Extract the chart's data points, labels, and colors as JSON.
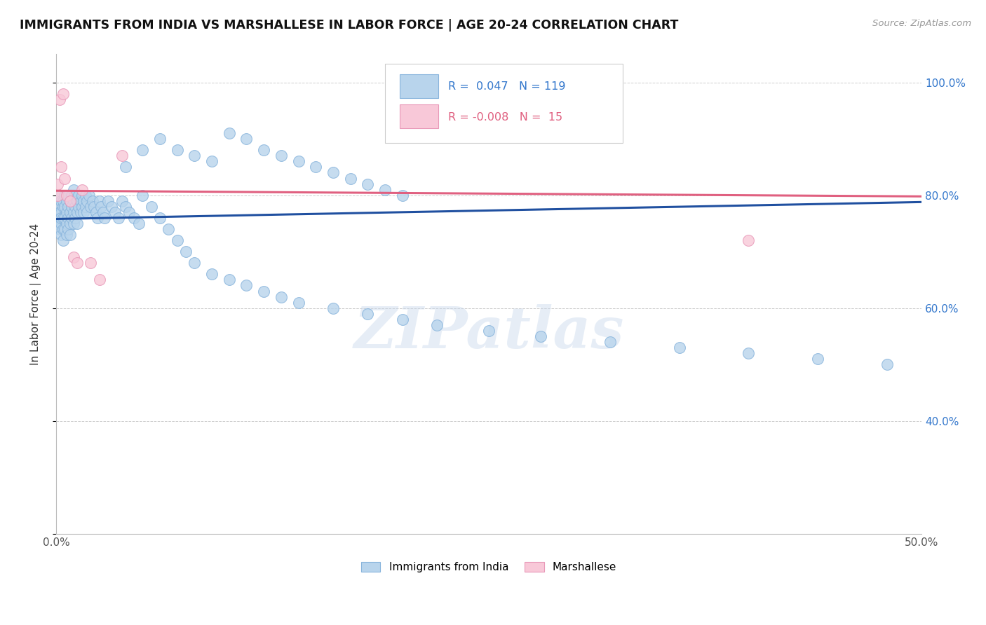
{
  "title": "IMMIGRANTS FROM INDIA VS MARSHALLESE IN LABOR FORCE | AGE 20-24 CORRELATION CHART",
  "source": "Source: ZipAtlas.com",
  "ylabel": "In Labor Force | Age 20-24",
  "xlim": [
    0.0,
    0.5
  ],
  "ylim": [
    0.2,
    1.05
  ],
  "india_R": 0.047,
  "india_N": 119,
  "marsh_R": -0.008,
  "marsh_N": 15,
  "india_color": "#b8d4ec",
  "india_edge_color": "#88b4dc",
  "marsh_color": "#f8c8d8",
  "marsh_edge_color": "#e898b8",
  "india_line_color": "#2050a0",
  "marsh_line_color": "#e06080",
  "watermark": "ZIPatlas",
  "india_scatter_x": [
    0.001,
    0.001,
    0.001,
    0.002,
    0.002,
    0.002,
    0.002,
    0.002,
    0.003,
    0.003,
    0.003,
    0.003,
    0.003,
    0.004,
    0.004,
    0.004,
    0.004,
    0.004,
    0.005,
    0.005,
    0.005,
    0.005,
    0.006,
    0.006,
    0.006,
    0.006,
    0.007,
    0.007,
    0.007,
    0.007,
    0.008,
    0.008,
    0.008,
    0.008,
    0.009,
    0.009,
    0.009,
    0.01,
    0.01,
    0.01,
    0.01,
    0.011,
    0.011,
    0.011,
    0.012,
    0.012,
    0.012,
    0.013,
    0.013,
    0.014,
    0.014,
    0.015,
    0.015,
    0.016,
    0.016,
    0.017,
    0.017,
    0.018,
    0.018,
    0.019,
    0.02,
    0.021,
    0.022,
    0.023,
    0.024,
    0.025,
    0.026,
    0.027,
    0.028,
    0.03,
    0.032,
    0.034,
    0.036,
    0.038,
    0.04,
    0.042,
    0.045,
    0.048,
    0.05,
    0.055,
    0.06,
    0.065,
    0.07,
    0.075,
    0.08,
    0.09,
    0.1,
    0.11,
    0.12,
    0.13,
    0.14,
    0.16,
    0.18,
    0.2,
    0.22,
    0.25,
    0.28,
    0.32,
    0.36,
    0.4,
    0.44,
    0.48,
    0.04,
    0.05,
    0.06,
    0.07,
    0.08,
    0.09,
    0.1,
    0.11,
    0.12,
    0.13,
    0.14,
    0.15,
    0.16,
    0.17,
    0.18,
    0.19,
    0.2
  ],
  "india_scatter_y": [
    0.76,
    0.77,
    0.75,
    0.78,
    0.76,
    0.74,
    0.8,
    0.77,
    0.79,
    0.77,
    0.75,
    0.73,
    0.76,
    0.78,
    0.76,
    0.74,
    0.72,
    0.79,
    0.8,
    0.78,
    0.76,
    0.74,
    0.79,
    0.77,
    0.75,
    0.73,
    0.8,
    0.78,
    0.76,
    0.74,
    0.79,
    0.77,
    0.75,
    0.73,
    0.8,
    0.78,
    0.76,
    0.81,
    0.79,
    0.77,
    0.75,
    0.8,
    0.78,
    0.76,
    0.79,
    0.77,
    0.75,
    0.8,
    0.78,
    0.79,
    0.77,
    0.8,
    0.78,
    0.79,
    0.77,
    0.8,
    0.78,
    0.79,
    0.77,
    0.8,
    0.78,
    0.79,
    0.78,
    0.77,
    0.76,
    0.79,
    0.78,
    0.77,
    0.76,
    0.79,
    0.78,
    0.77,
    0.76,
    0.79,
    0.78,
    0.77,
    0.76,
    0.75,
    0.8,
    0.78,
    0.76,
    0.74,
    0.72,
    0.7,
    0.68,
    0.66,
    0.65,
    0.64,
    0.63,
    0.62,
    0.61,
    0.6,
    0.59,
    0.58,
    0.57,
    0.56,
    0.55,
    0.54,
    0.53,
    0.52,
    0.51,
    0.5,
    0.85,
    0.88,
    0.9,
    0.88,
    0.87,
    0.86,
    0.91,
    0.9,
    0.88,
    0.87,
    0.86,
    0.85,
    0.84,
    0.83,
    0.82,
    0.81,
    0.8
  ],
  "marsh_scatter_x": [
    0.001,
    0.001,
    0.002,
    0.003,
    0.004,
    0.005,
    0.006,
    0.008,
    0.01,
    0.012,
    0.015,
    0.02,
    0.025,
    0.038,
    0.4
  ],
  "marsh_scatter_y": [
    0.82,
    0.8,
    0.97,
    0.85,
    0.98,
    0.83,
    0.8,
    0.79,
    0.69,
    0.68,
    0.81,
    0.68,
    0.65,
    0.87,
    0.72
  ]
}
